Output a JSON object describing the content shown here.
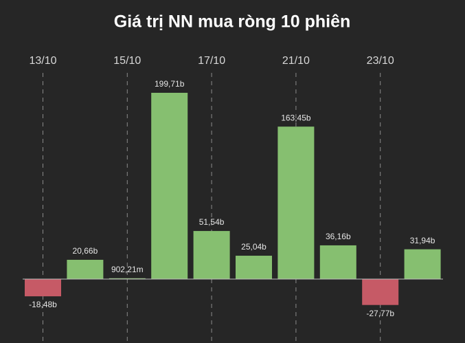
{
  "chart_data": {
    "type": "bar",
    "title": "Giá trị NN mua ròng 10 phiên",
    "categories": [
      "13/10",
      null,
      "15/10",
      null,
      "17/10",
      null,
      "21/10",
      null,
      "23/10",
      null
    ],
    "values": [
      -18.48,
      20.66,
      0.90221,
      199.71,
      51.54,
      25.04,
      163.45,
      36.16,
      -27.77,
      31.94
    ],
    "value_labels": [
      "-18,48b",
      "20,66b",
      "902,21m",
      "199,71b",
      "51,54b",
      "25,04b",
      "163,45b",
      "36,16b",
      "-27,77b",
      "31,94b"
    ],
    "color": "#86bf70",
    "negative_color": "#c65a66"
  }
}
